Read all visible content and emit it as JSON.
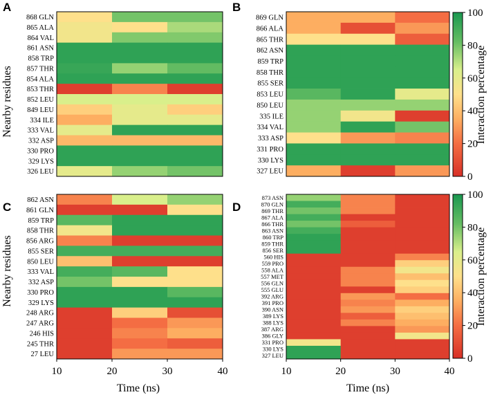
{
  "chart_data": [
    {
      "type": "heatmap",
      "panel": "A",
      "ylabel": "Nearby residues",
      "xlabel": "",
      "x_bins": [
        "10-20",
        "20-30",
        "30-40"
      ],
      "xlim": [
        10,
        40
      ],
      "xticks": [],
      "residues": [
        "868 GLN",
        "865 ALA",
        "864 VAL",
        "861 ASN",
        "858 TRP",
        "857 THR",
        "854 ALA",
        "853 THR",
        "852 LEU",
        "849 LEU",
        "334 ILE",
        "333 VAL",
        "332 ASP",
        "330 PRO",
        "329 LYS",
        "326 LEU"
      ],
      "values": [
        [
          50,
          80,
          80
        ],
        [
          55,
          50,
          72
        ],
        [
          55,
          78,
          78
        ],
        [
          95,
          95,
          95
        ],
        [
          95,
          95,
          95
        ],
        [
          93,
          75,
          83
        ],
        [
          95,
          95,
          95
        ],
        [
          5,
          25,
          5
        ],
        [
          65,
          65,
          65
        ],
        [
          45,
          60,
          45
        ],
        [
          35,
          60,
          60
        ],
        [
          60,
          95,
          95
        ],
        [
          38,
          38,
          38
        ],
        [
          95,
          95,
          95
        ],
        [
          95,
          95,
          95
        ],
        [
          60,
          75,
          80
        ]
      ]
    },
    {
      "type": "heatmap",
      "panel": "B",
      "ylabel": "",
      "xlabel": "",
      "x_bins": [
        "10-20",
        "20-30",
        "30-40"
      ],
      "xlim": [
        10,
        40
      ],
      "xticks": [],
      "residues": [
        "869 GLN",
        "866 ALA",
        "865 THR",
        "862 ASN",
        "859 TRP",
        "858 THR",
        "855 SER",
        "853 LEU",
        "850 LEU",
        "335 ILE",
        "334 VAL",
        "333 ASP",
        "331 PRO",
        "330 LYS",
        "327 LEU"
      ],
      "values": [
        [
          35,
          35,
          20
        ],
        [
          35,
          10,
          30
        ],
        [
          50,
          50,
          15
        ],
        [
          95,
          95,
          95
        ],
        [
          95,
          95,
          95
        ],
        [
          95,
          95,
          95
        ],
        [
          95,
          95,
          95
        ],
        [
          85,
          95,
          60
        ],
        [
          75,
          75,
          75
        ],
        [
          75,
          55,
          5
        ],
        [
          75,
          95,
          80
        ],
        [
          50,
          30,
          25
        ],
        [
          95,
          95,
          95
        ],
        [
          95,
          95,
          95
        ],
        [
          35,
          5,
          30
        ]
      ]
    },
    {
      "type": "heatmap",
      "panel": "C",
      "ylabel": "Nearby residues",
      "xlabel": "Time (ns)",
      "x_bins": [
        "10-20",
        "20-30",
        "30-40"
      ],
      "xlim": [
        10,
        40
      ],
      "xticks": [
        "10",
        "20",
        "30",
        "40"
      ],
      "residues": [
        "862 ASN",
        "861 GLN",
        "859 TRP",
        "858 THR",
        "856 ARG",
        "855 SER",
        "850 LEU",
        "333 VAL",
        "332 ASP",
        "330 PRO",
        "329 LYS",
        "248 ARG",
        "247 ARG",
        "246 HIS",
        "245 THR",
        "27 LEU"
      ],
      "values": [
        [
          25,
          65,
          75
        ],
        [
          5,
          5,
          50
        ],
        [
          85,
          95,
          95
        ],
        [
          55,
          95,
          95
        ],
        [
          25,
          5,
          5
        ],
        [
          90,
          90,
          90
        ],
        [
          40,
          5,
          5
        ],
        [
          90,
          85,
          50
        ],
        [
          80,
          50,
          50
        ],
        [
          95,
          95,
          85
        ],
        [
          95,
          95,
          95
        ],
        [
          5,
          45,
          10
        ],
        [
          5,
          20,
          30
        ],
        [
          5,
          25,
          35
        ],
        [
          5,
          20,
          15
        ],
        [
          5,
          30,
          30
        ]
      ]
    },
    {
      "type": "heatmap",
      "panel": "D",
      "ylabel": "",
      "xlabel": "Time (ns)",
      "x_bins": [
        "10-20",
        "20-30",
        "30-40"
      ],
      "xlim": [
        10,
        40
      ],
      "xticks": [
        "10",
        "20",
        "30",
        "40"
      ],
      "residues": [
        "873 ASN",
        "870 GLN",
        "869 THR",
        "867 ALA",
        "866 THR",
        "863 ASN",
        "860 TRP",
        "859 THR",
        "856 SER",
        "560 HIS",
        "559 PRO",
        "558 ALA",
        "557 MET",
        "556 GLN",
        "555 GLU",
        "392 ARG",
        "391 PRO",
        "390 ASN",
        "389 LYS",
        "388 LYS",
        "387 ARG",
        "386 GLY",
        "331 PRO",
        "330 LYS",
        "327 LEU"
      ],
      "values": [
        [
          75,
          25,
          5
        ],
        [
          90,
          25,
          5
        ],
        [
          80,
          25,
          5
        ],
        [
          90,
          5,
          5
        ],
        [
          80,
          15,
          5
        ],
        [
          90,
          5,
          5
        ],
        [
          95,
          5,
          5
        ],
        [
          95,
          5,
          5
        ],
        [
          95,
          5,
          5
        ],
        [
          5,
          5,
          25
        ],
        [
          5,
          5,
          45
        ],
        [
          5,
          25,
          55
        ],
        [
          5,
          25,
          40
        ],
        [
          5,
          25,
          50
        ],
        [
          5,
          5,
          45
        ],
        [
          5,
          30,
          20
        ],
        [
          5,
          25,
          35
        ],
        [
          5,
          30,
          45
        ],
        [
          5,
          15,
          40
        ],
        [
          5,
          25,
          35
        ],
        [
          5,
          5,
          30
        ],
        [
          5,
          5,
          55
        ],
        [
          55,
          5,
          5
        ],
        [
          95,
          5,
          5
        ],
        [
          95,
          5,
          5
        ]
      ]
    }
  ],
  "colorbar": {
    "label": "Interaction percentage",
    "range": [
      0,
      100
    ],
    "ticks": [
      "0",
      "20",
      "40",
      "60",
      "80",
      "100"
    ],
    "tick_values": [
      0,
      20,
      40,
      60,
      80,
      100
    ]
  },
  "colors": {
    "low": "#d73027",
    "mid_low": "#f46d43",
    "mid": "#fdae61",
    "mid_high": "#fee08b",
    "high_low": "#d9ef8b",
    "high_mid": "#66bd63",
    "high": "#1a9850"
  }
}
